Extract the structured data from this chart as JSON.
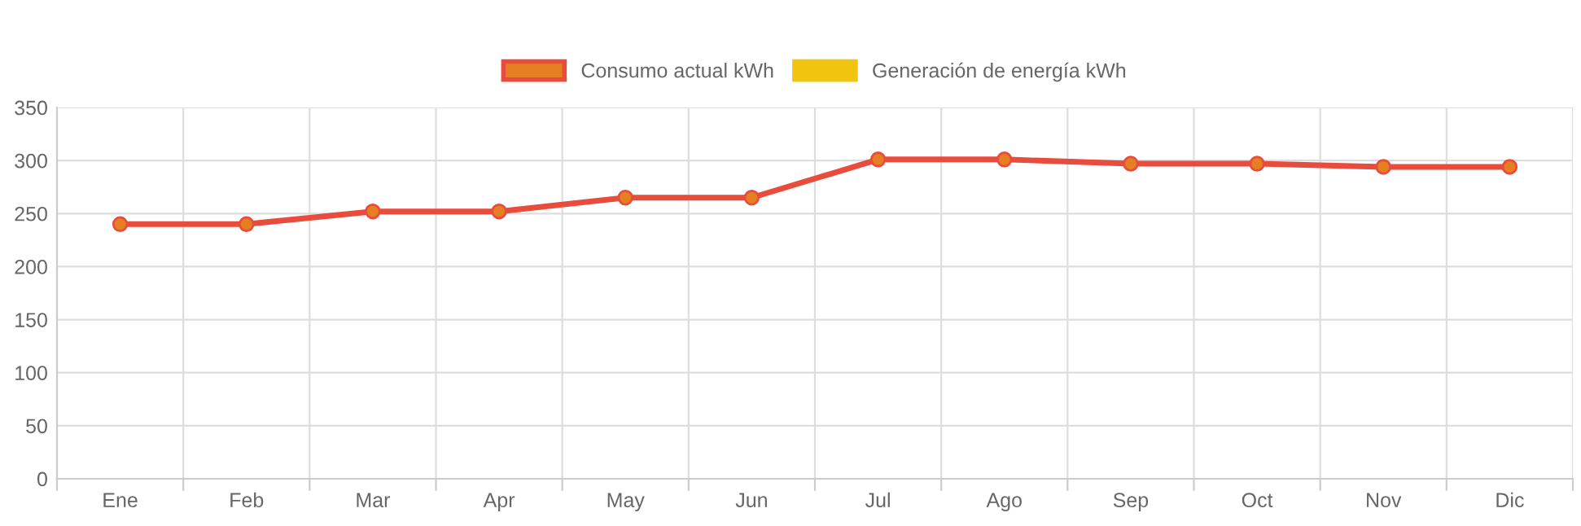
{
  "chart_data": {
    "type": "line",
    "categories": [
      "Ene",
      "Feb",
      "Mar",
      "Apr",
      "May",
      "Jun",
      "Jul",
      "Ago",
      "Sep",
      "Oct",
      "Nov",
      "Dic"
    ],
    "series": [
      {
        "name": "Consumo actual kWh",
        "color": "#e74c3c",
        "values": [
          240,
          240,
          252,
          252,
          265,
          265,
          301,
          301,
          297,
          297,
          294,
          294
        ]
      },
      {
        "name": "Generación de energía kWh",
        "color": "#f1c40f",
        "values": [
          null,
          null,
          null,
          null,
          null,
          null,
          null,
          null,
          null,
          null,
          null,
          null
        ]
      }
    ],
    "ylim": [
      0,
      350
    ],
    "yticks": [
      0,
      50,
      100,
      150,
      200,
      250,
      300,
      350
    ],
    "grid": true,
    "legend": "top",
    "marker": "circle",
    "line_style": "solid"
  }
}
